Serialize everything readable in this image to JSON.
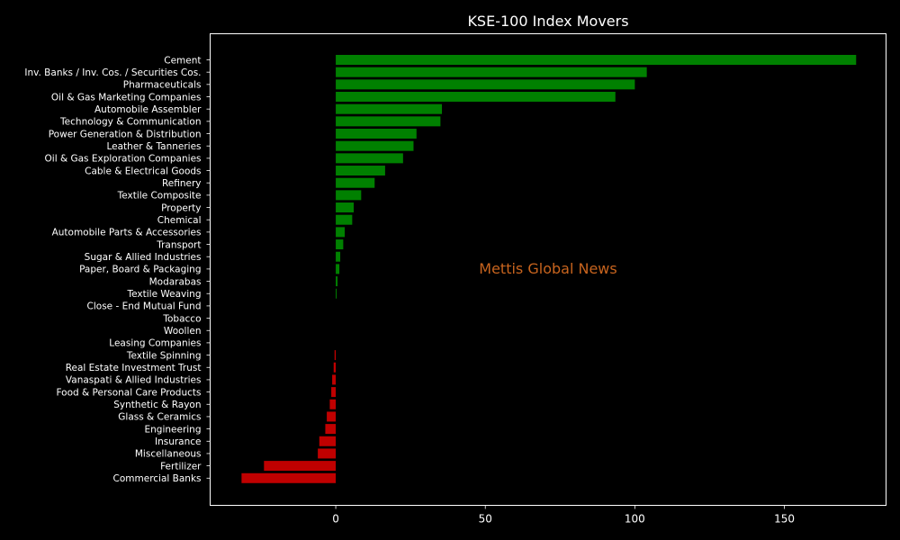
{
  "chart_data": {
    "type": "bar",
    "orientation": "horizontal",
    "title": "KSE-100 Index Movers",
    "xlabel": "",
    "ylabel": "",
    "xlim": [
      -42,
      184
    ],
    "xticks": [
      0,
      50,
      100,
      150
    ],
    "grid": false,
    "categories": [
      "Cement",
      "Inv. Banks / Inv. Cos. / Securities Cos.",
      "Pharmaceuticals",
      "Oil & Gas Marketing Companies",
      "Automobile Assembler",
      "Technology & Communication",
      "Power Generation & Distribution",
      "Leather & Tanneries",
      "Oil & Gas Exploration Companies",
      "Cable & Electrical Goods",
      "Refinery",
      "Textile Composite",
      "Property",
      "Chemical",
      "Automobile Parts & Accessories",
      "Transport",
      "Sugar & Allied Industries",
      "Paper, Board & Packaging",
      "Modarabas",
      "Textile Weaving",
      "Close - End Mutual Fund",
      "Tobacco",
      "Woollen",
      "Leasing Companies",
      "Textile Spinning",
      "Real Estate Investment Trust",
      "Vanaspati & Allied Industries",
      "Food & Personal Care Products",
      "Synthetic & Rayon",
      "Glass & Ceramics",
      "Engineering",
      "Insurance",
      "Miscellaneous",
      "Fertilizer",
      "Commercial Banks"
    ],
    "values": [
      174,
      104,
      100,
      93.5,
      35.5,
      35,
      27,
      26,
      22.5,
      16.5,
      13,
      8.5,
      6,
      5.5,
      3,
      2.5,
      1.5,
      1.2,
      0.6,
      0.3,
      0,
      0,
      0,
      0,
      -0.4,
      -0.7,
      -1.2,
      -1.5,
      -2,
      -3,
      -3.5,
      -5.5,
      -6,
      -24,
      -31.5
    ],
    "colors": {
      "positive": "#008000",
      "negative": "#c00000",
      "axes": "#ffffff",
      "background": "#000000"
    },
    "watermark": "Mettis Global News",
    "watermark_color": "#c8641e"
  }
}
